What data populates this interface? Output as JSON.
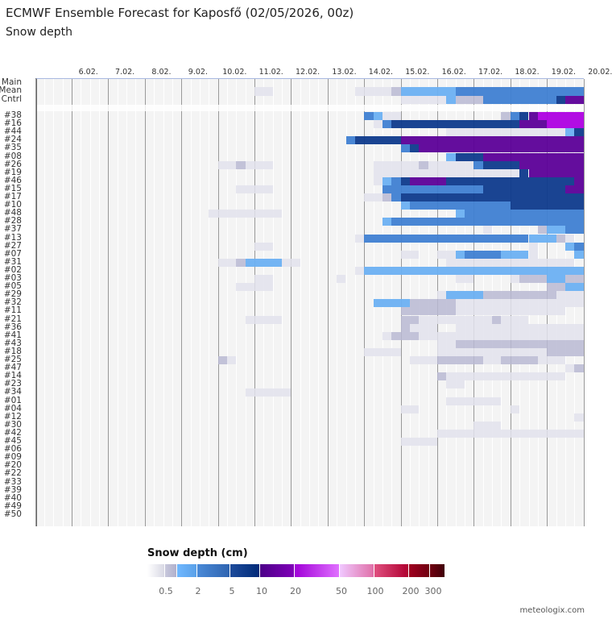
{
  "header": {
    "title": "ECMWF Ensemble Forecast for Kaposfő (02/05/2026, 00z)",
    "subtitle": "Snow depth"
  },
  "credit": "meteologix.com",
  "chart_data": {
    "type": "heatmap",
    "title": "Snow depth",
    "x_unit": "6-hour time step",
    "x_steps": 60,
    "x_tick_labels": [
      "6.02.",
      "7.02.",
      "8.02.",
      "9.02.",
      "10.02.",
      "11.02.",
      "12.02.",
      "13.02.",
      "14.02.",
      "15.02.",
      "16.02.",
      "17.02.",
      "18.02.",
      "19.02.",
      "20.02."
    ],
    "levels": {
      "1": {
        "range": "<0.5 cm",
        "color": "#e2e2ec"
      },
      "2": {
        "range": "0.5-1 cm",
        "color": "#b9b9d2"
      },
      "3": {
        "range": "1-2 cm",
        "color": "#6cb0f2"
      },
      "4": {
        "range": "2-5 cm",
        "color": "#3f80d2"
      },
      "5": {
        "range": "5-10 cm",
        "color": "#0e3a8c"
      },
      "6": {
        "range": "10-20 cm",
        "color": "#5c0098"
      },
      "7": {
        "range": "20-50 cm",
        "color": "#ae00e2"
      }
    },
    "summary_rows": [
      {
        "label": "Main",
        "segments": []
      },
      {
        "label": "Mean",
        "segments": [
          [
            24,
            25,
            1
          ],
          [
            35,
            38,
            1
          ],
          [
            39,
            39,
            2
          ],
          [
            40,
            45,
            3
          ],
          [
            46,
            59,
            4
          ]
        ]
      },
      {
        "label": "Cntrl",
        "segments": [
          [
            40,
            44,
            1
          ],
          [
            45,
            45,
            3
          ],
          [
            46,
            48,
            2
          ],
          [
            49,
            56,
            4
          ],
          [
            57,
            57,
            5
          ],
          [
            58,
            59,
            6
          ]
        ]
      }
    ],
    "member_rows": [
      {
        "label": "#38",
        "segments": [
          [
            36,
            36,
            4
          ],
          [
            37,
            37,
            3
          ],
          [
            38,
            39,
            1
          ],
          [
            51,
            51,
            2
          ],
          [
            52,
            52,
            4
          ],
          [
            53,
            53,
            5
          ],
          [
            54,
            54,
            6
          ],
          [
            55,
            59,
            7
          ]
        ]
      },
      {
        "label": "#16",
        "segments": [
          [
            37,
            37,
            1
          ],
          [
            38,
            38,
            4
          ],
          [
            39,
            52,
            5
          ],
          [
            53,
            55,
            6
          ],
          [
            56,
            59,
            7
          ]
        ]
      },
      {
        "label": "#44",
        "segments": [
          [
            45,
            57,
            1
          ],
          [
            58,
            58,
            3
          ],
          [
            59,
            59,
            5
          ]
        ]
      },
      {
        "label": "#24",
        "segments": [
          [
            34,
            34,
            4
          ],
          [
            35,
            39,
            5
          ],
          [
            40,
            59,
            6
          ]
        ]
      },
      {
        "label": "#35",
        "segments": [
          [
            40,
            40,
            4
          ],
          [
            41,
            41,
            5
          ],
          [
            42,
            59,
            6
          ]
        ]
      },
      {
        "label": "#08",
        "segments": [
          [
            45,
            45,
            3
          ],
          [
            46,
            48,
            5
          ],
          [
            49,
            59,
            6
          ]
        ]
      },
      {
        "label": "#26",
        "segments": [
          [
            20,
            21,
            1
          ],
          [
            22,
            22,
            2
          ],
          [
            23,
            25,
            1
          ],
          [
            37,
            41,
            1
          ],
          [
            42,
            42,
            2
          ],
          [
            43,
            47,
            1
          ],
          [
            48,
            48,
            4
          ],
          [
            49,
            52,
            5
          ],
          [
            53,
            59,
            6
          ]
        ]
      },
      {
        "label": "#19",
        "segments": [
          [
            37,
            52,
            1
          ],
          [
            53,
            53,
            5
          ],
          [
            54,
            59,
            6
          ]
        ]
      },
      {
        "label": "#46",
        "segments": [
          [
            37,
            37,
            1
          ],
          [
            38,
            38,
            3
          ],
          [
            39,
            39,
            4
          ],
          [
            40,
            40,
            5
          ],
          [
            41,
            44,
            6
          ],
          [
            45,
            58,
            5
          ],
          [
            59,
            59,
            6
          ]
        ]
      },
      {
        "label": "#15",
        "segments": [
          [
            22,
            25,
            1
          ],
          [
            38,
            48,
            4
          ],
          [
            49,
            57,
            5
          ],
          [
            58,
            59,
            6
          ]
        ]
      },
      {
        "label": "#17",
        "segments": [
          [
            36,
            37,
            1
          ],
          [
            38,
            38,
            2
          ],
          [
            39,
            39,
            4
          ],
          [
            40,
            59,
            5
          ]
        ]
      },
      {
        "label": "#10",
        "segments": [
          [
            40,
            40,
            3
          ],
          [
            41,
            51,
            4
          ],
          [
            52,
            59,
            5
          ]
        ]
      },
      {
        "label": "#48",
        "segments": [
          [
            19,
            26,
            1
          ],
          [
            46,
            46,
            3
          ],
          [
            47,
            59,
            4
          ]
        ]
      },
      {
        "label": "#28",
        "segments": [
          [
            38,
            38,
            3
          ],
          [
            39,
            59,
            4
          ]
        ]
      },
      {
        "label": "#37",
        "segments": [
          [
            49,
            49,
            1
          ],
          [
            55,
            55,
            2
          ],
          [
            56,
            57,
            3
          ],
          [
            58,
            59,
            4
          ]
        ]
      },
      {
        "label": "#13",
        "segments": [
          [
            35,
            35,
            1
          ],
          [
            36,
            53,
            4
          ],
          [
            54,
            56,
            3
          ],
          [
            57,
            57,
            2
          ],
          [
            58,
            58,
            1
          ]
        ]
      },
      {
        "label": "#27",
        "segments": [
          [
            24,
            25,
            1
          ],
          [
            54,
            54,
            1
          ],
          [
            58,
            58,
            3
          ],
          [
            59,
            59,
            4
          ]
        ]
      },
      {
        "label": "#07",
        "segments": [
          [
            40,
            41,
            1
          ],
          [
            44,
            45,
            1
          ],
          [
            46,
            46,
            3
          ],
          [
            47,
            50,
            4
          ],
          [
            51,
            53,
            3
          ],
          [
            54,
            54,
            1
          ],
          [
            59,
            59,
            3
          ]
        ]
      },
      {
        "label": "#31",
        "segments": [
          [
            20,
            21,
            1
          ],
          [
            22,
            22,
            2
          ],
          [
            23,
            26,
            3
          ],
          [
            27,
            28,
            1
          ],
          [
            45,
            58,
            1
          ]
        ]
      },
      {
        "label": "#02",
        "segments": [
          [
            35,
            35,
            1
          ],
          [
            36,
            59,
            3
          ]
        ]
      },
      {
        "label": "#03",
        "segments": [
          [
            24,
            25,
            1
          ],
          [
            33,
            33,
            1
          ],
          [
            46,
            47,
            1
          ],
          [
            52,
            52,
            1
          ],
          [
            53,
            55,
            2
          ],
          [
            56,
            57,
            3
          ],
          [
            58,
            59,
            2
          ]
        ]
      },
      {
        "label": "#05",
        "segments": [
          [
            22,
            25,
            1
          ],
          [
            56,
            57,
            2
          ],
          [
            58,
            59,
            3
          ]
        ]
      },
      {
        "label": "#29",
        "segments": [
          [
            44,
            44,
            1
          ],
          [
            45,
            48,
            3
          ],
          [
            49,
            56,
            2
          ],
          [
            57,
            59,
            1
          ]
        ]
      },
      {
        "label": "#32",
        "segments": [
          [
            37,
            40,
            3
          ],
          [
            41,
            45,
            2
          ],
          [
            46,
            59,
            1
          ]
        ]
      },
      {
        "label": "#11",
        "segments": [
          [
            40,
            45,
            2
          ],
          [
            46,
            57,
            1
          ]
        ]
      },
      {
        "label": "#21",
        "segments": [
          [
            23,
            26,
            1
          ],
          [
            40,
            41,
            2
          ],
          [
            42,
            49,
            1
          ],
          [
            50,
            50,
            2
          ],
          [
            51,
            53,
            1
          ]
        ]
      },
      {
        "label": "#36",
        "segments": [
          [
            40,
            40,
            2
          ],
          [
            41,
            43,
            1
          ],
          [
            46,
            59,
            1
          ]
        ]
      },
      {
        "label": "#41",
        "segments": [
          [
            38,
            38,
            1
          ],
          [
            39,
            41,
            2
          ],
          [
            42,
            59,
            1
          ]
        ]
      },
      {
        "label": "#43",
        "segments": [
          [
            44,
            45,
            1
          ],
          [
            46,
            49,
            2
          ],
          [
            50,
            59,
            2
          ]
        ]
      },
      {
        "label": "#18",
        "segments": [
          [
            36,
            39,
            1
          ],
          [
            44,
            55,
            1
          ],
          [
            56,
            59,
            2
          ]
        ]
      },
      {
        "label": "#25",
        "segments": [
          [
            20,
            20,
            2
          ],
          [
            21,
            21,
            1
          ],
          [
            41,
            43,
            1
          ],
          [
            44,
            48,
            2
          ],
          [
            49,
            50,
            1
          ],
          [
            51,
            54,
            2
          ],
          [
            55,
            57,
            1
          ]
        ]
      },
      {
        "label": "#47",
        "segments": [
          [
            58,
            58,
            1
          ],
          [
            59,
            59,
            2
          ]
        ]
      },
      {
        "label": "#14",
        "segments": [
          [
            44,
            44,
            2
          ],
          [
            45,
            57,
            1
          ]
        ]
      },
      {
        "label": "#23",
        "segments": [
          [
            45,
            46,
            1
          ]
        ]
      },
      {
        "label": "#34",
        "segments": [
          [
            23,
            27,
            1
          ]
        ]
      },
      {
        "label": "#01",
        "segments": [
          [
            45,
            50,
            1
          ]
        ]
      },
      {
        "label": "#04",
        "segments": [
          [
            40,
            41,
            1
          ],
          [
            52,
            52,
            1
          ]
        ]
      },
      {
        "label": "#12",
        "segments": [
          [
            59,
            59,
            1
          ]
        ]
      },
      {
        "label": "#30",
        "segments": [
          [
            48,
            50,
            1
          ]
        ]
      },
      {
        "label": "#42",
        "segments": [
          [
            44,
            59,
            1
          ]
        ]
      },
      {
        "label": "#45",
        "segments": [
          [
            40,
            43,
            1
          ]
        ]
      },
      {
        "label": "#06",
        "segments": []
      },
      {
        "label": "#09",
        "segments": []
      },
      {
        "label": "#20",
        "segments": []
      },
      {
        "label": "#22",
        "segments": []
      },
      {
        "label": "#33",
        "segments": []
      },
      {
        "label": "#39",
        "segments": []
      },
      {
        "label": "#40",
        "segments": []
      },
      {
        "label": "#49",
        "segments": []
      },
      {
        "label": "#50",
        "segments": []
      }
    ],
    "legend": {
      "title": "Snow depth (cm)",
      "placement": "bottom-center",
      "tick_labels": [
        "0.5",
        "2",
        "5",
        "10",
        "20",
        "50",
        "100",
        "200",
        "300"
      ],
      "bands": [
        {
          "from": "#ffffff",
          "to": "#d8d8e4",
          "weight": 22
        },
        {
          "from": "#c8c8dc",
          "to": "#b0b0cc",
          "weight": 15
        },
        {
          "from": "#70b8ff",
          "to": "#5aa0e8",
          "weight": 25
        },
        {
          "from": "#4a8ad8",
          "to": "#2e64b0",
          "weight": 40
        },
        {
          "from": "#1e4c9c",
          "to": "#002a78",
          "weight": 37
        },
        {
          "from": "#4c0088",
          "to": "#8000b8",
          "weight": 43
        },
        {
          "from": "#a000d8",
          "to": "#e070ff",
          "weight": 56
        },
        {
          "from": "#f0c8ff",
          "to": "#e070a8",
          "weight": 43
        },
        {
          "from": "#e05080",
          "to": "#b00030",
          "weight": 42
        },
        {
          "from": "#a00020",
          "to": "#700010",
          "weight": 26
        },
        {
          "from": "#700010",
          "to": "#400008",
          "weight": 19
        }
      ]
    }
  }
}
